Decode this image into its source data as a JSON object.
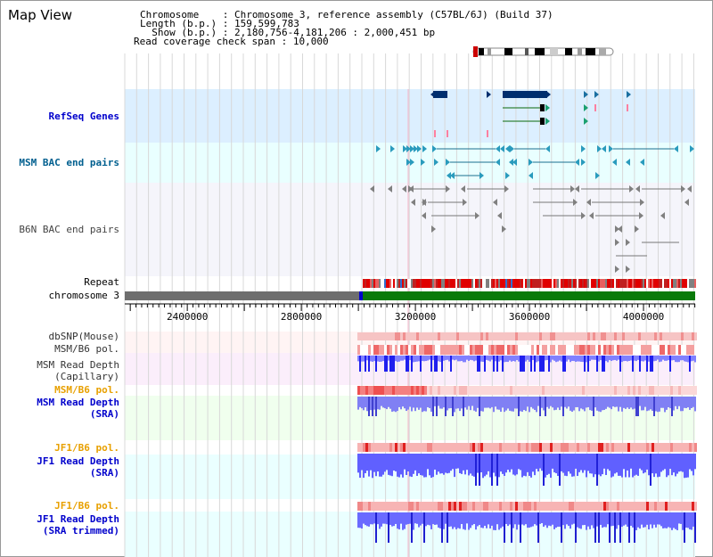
{
  "page_title": "Map View",
  "info": [
    {
      "label": "Chromosome",
      "sep": ":",
      "value": "Chromosome 3, reference assembly (C57BL/6J) (Build 37)"
    },
    {
      "label": "Length (b.p.)",
      "sep": ":",
      "value": "159,599,783"
    },
    {
      "label": "Show (b.p.)",
      "sep": ":",
      "value": "2,180,756-4,181,206 : 2,000,451 bp"
    },
    {
      "label": "Read coverage check span",
      "sep": ":",
      "value": "10,000"
    }
  ],
  "axis": {
    "start_bp": 2180756,
    "end_bp": 4181206,
    "tick_labels": [
      {
        "bp": 2400000,
        "label": "2400000"
      },
      {
        "bp": 2800000,
        "label": "2800000"
      },
      {
        "bp": 3200000,
        "label": "3200000"
      },
      {
        "bp": 3600000,
        "label": "3600000"
      },
      {
        "bp": 4000000,
        "label": "4000000"
      }
    ]
  },
  "tracks": {
    "refseq": {
      "label": "RefSeq Genes",
      "color": "#0000cc"
    },
    "msm_bac": {
      "label": "MSM BAC end pairs",
      "color": "#005f8f"
    },
    "b6n_bac": {
      "label": "B6N BAC end pairs",
      "color": "#444444"
    },
    "repeat": {
      "label": "Repeat",
      "color": "#000000"
    },
    "chromosome": {
      "label": "chromosome 3",
      "color": "#000000"
    },
    "dbsnp": {
      "label": "dbSNP(Mouse)",
      "color": "#333333"
    },
    "msm_pol_cap": {
      "label": "MSM/B6 pol.",
      "color": "#333333"
    },
    "msm_depth_cap": {
      "label1": "MSM Read Depth",
      "label2": "(Capillary)",
      "color": "#333333"
    },
    "msm_pol_sra": {
      "label": "MSM/B6 pol.",
      "color": "#e8a000"
    },
    "msm_depth_sra": {
      "label1": "MSM Read Depth",
      "label2": "(SRA)",
      "color": "#0000cc"
    },
    "jf1_pol_sra": {
      "label": "JF1/B6 pol.",
      "color": "#e8a000"
    },
    "jf1_depth_sra": {
      "label1": "JF1 Read Depth",
      "label2": "(SRA)",
      "color": "#0000cc"
    },
    "jf1_pol_trim": {
      "label": "JF1/B6 pol.",
      "color": "#e8a000"
    },
    "jf1_depth_trim": {
      "label1": "JF1 Read Depth",
      "label2": "(SRA trimmed)",
      "color": "#0000cc"
    }
  },
  "colors": {
    "refseq_band": "#dcefff",
    "msm_bac_band": "#e9ffff",
    "b6n_band": "#f5f5fb",
    "cap_band": "#fbeefb",
    "sra_band": "#f0ffee",
    "jf1_band": "#eaffff",
    "gene": "#002e6e",
    "msm_arrow": "#2a9bbd",
    "b6n_arrow": "#808080",
    "chrom_gray": "#6e6e6e",
    "chrom_green": "#0a7a0a",
    "depth_blue": "#3a3aff",
    "snp_pink": "#f4b6b6"
  }
}
